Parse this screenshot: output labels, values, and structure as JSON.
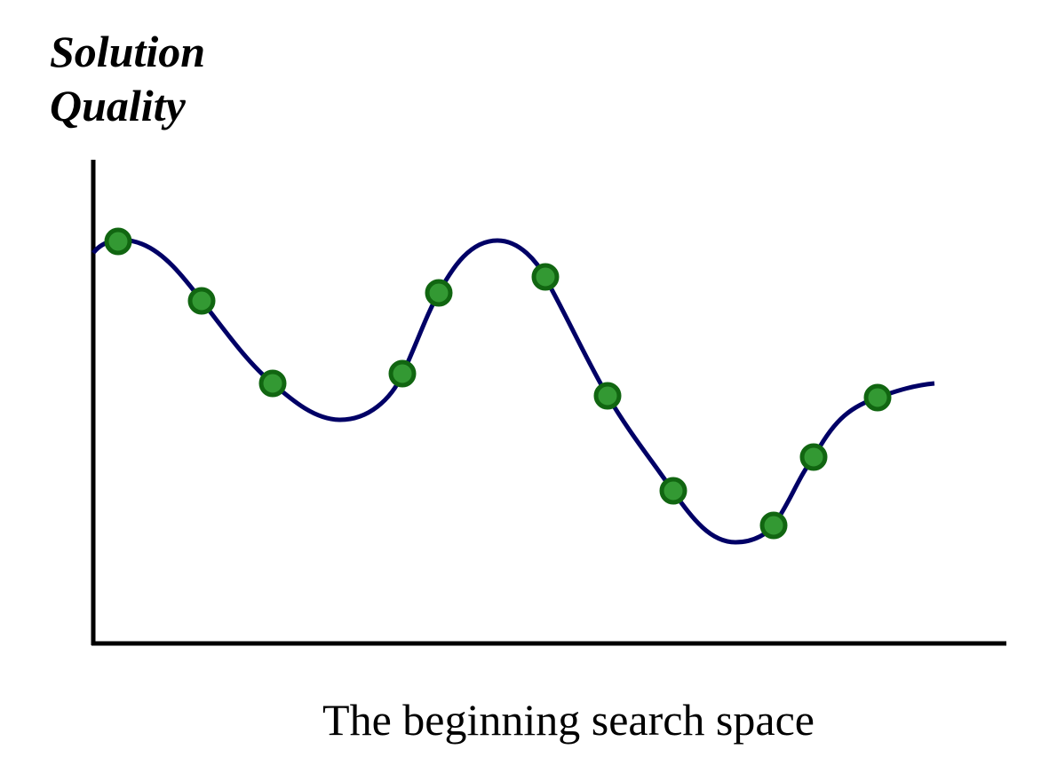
{
  "axis_labels": {
    "y": [
      "Solution",
      "Quality"
    ],
    "x": "The beginning search space"
  }
}
